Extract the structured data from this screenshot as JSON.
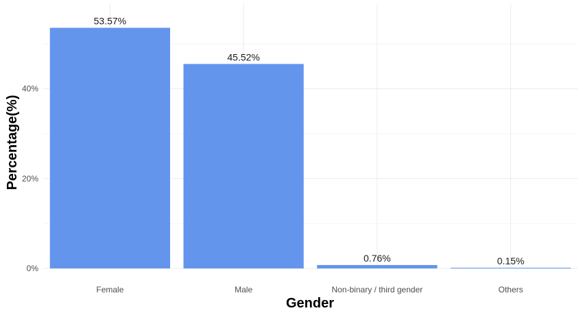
{
  "chart_data": {
    "type": "bar",
    "categories": [
      "Female",
      "Male",
      "Non-binary / third gender",
      "Others"
    ],
    "values": [
      53.57,
      45.52,
      0.76,
      0.15
    ],
    "data_labels": [
      "53.57%",
      "45.52%",
      "0.76%",
      "0.15%"
    ],
    "xlabel": "Gender",
    "ylabel": "Percentage(%)",
    "ylim": [
      0,
      58
    ],
    "yticks": [
      0,
      20,
      40
    ],
    "ytick_labels": [
      "0%",
      "20%",
      "40%"
    ],
    "grid": true,
    "bar_color": "#6495ED"
  }
}
